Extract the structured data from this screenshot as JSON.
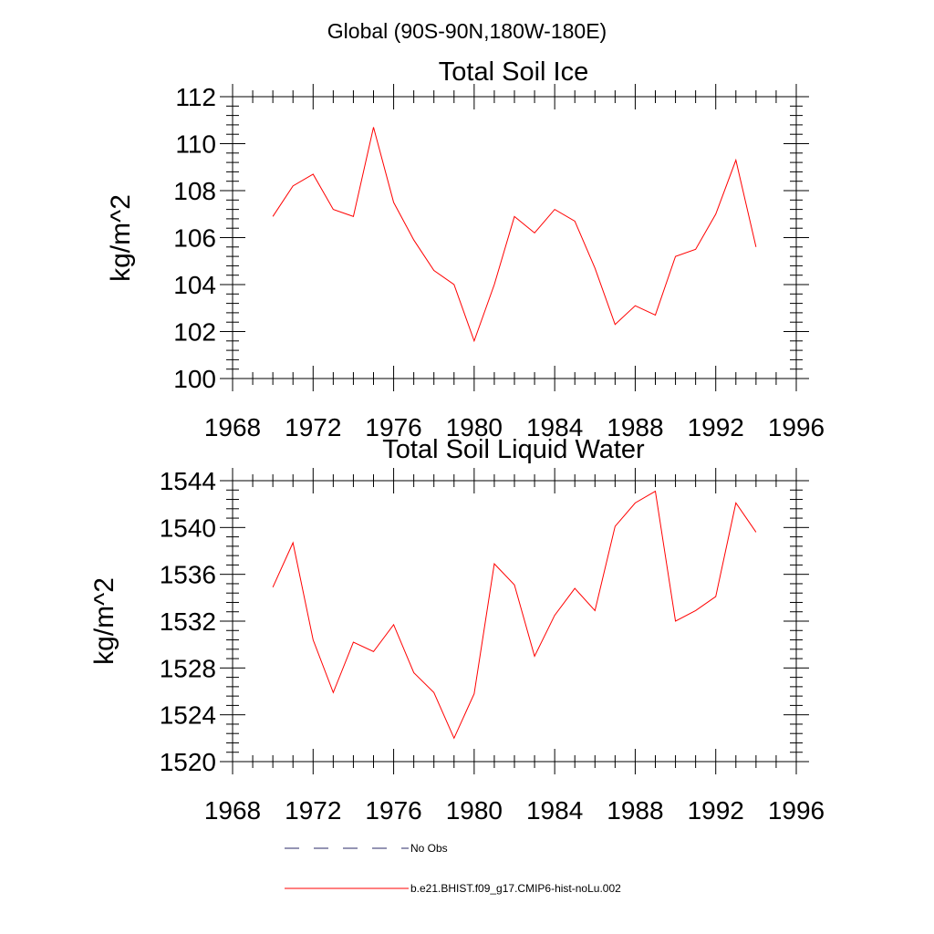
{
  "supertitle": "Global (90S-90N,180W-180E)",
  "legend": {
    "items": [
      {
        "label": "No Obs",
        "style": "dashed",
        "color": "#2a2a6a"
      },
      {
        "label": "b.e21.BHIST.f09_g17.CMIP6-hist-noLu.002",
        "style": "solid",
        "color": "#ff0000"
      }
    ]
  },
  "chart_data": [
    {
      "type": "line",
      "title": "Total Soil Ice",
      "ylabel": "kg/m^2",
      "xlabel": "",
      "xlim": [
        1968,
        1996
      ],
      "ylim": [
        100,
        112
      ],
      "xticks": [
        1968,
        1972,
        1976,
        1980,
        1984,
        1988,
        1992,
        1996
      ],
      "yticks": [
        100,
        102,
        104,
        106,
        108,
        110,
        112
      ],
      "x": [
        1970,
        1971,
        1972,
        1973,
        1974,
        1975,
        1976,
        1977,
        1978,
        1979,
        1980,
        1981,
        1982,
        1983,
        1984,
        1985,
        1986,
        1987,
        1988,
        1989,
        1990,
        1991,
        1992,
        1993,
        1994
      ],
      "series": [
        {
          "name": "b.e21.BHIST.f09_g17.CMIP6-hist-noLu.002",
          "color": "#ff0000",
          "values": [
            106.9,
            108.2,
            108.7,
            107.2,
            106.9,
            110.7,
            107.5,
            105.9,
            104.6,
            104.0,
            101.6,
            104.0,
            106.9,
            106.2,
            107.2,
            106.7,
            104.7,
            102.3,
            103.1,
            102.7,
            105.2,
            105.5,
            107.0,
            109.3,
            105.6
          ]
        }
      ]
    },
    {
      "type": "line",
      "title": "Total Soil Liquid Water",
      "ylabel": "kg/m^2",
      "xlabel": "",
      "xlim": [
        1968,
        1996
      ],
      "ylim": [
        1520,
        1544
      ],
      "xticks": [
        1968,
        1972,
        1976,
        1980,
        1984,
        1988,
        1992,
        1996
      ],
      "yticks": [
        1520,
        1524,
        1528,
        1532,
        1536,
        1540,
        1544
      ],
      "x": [
        1970,
        1971,
        1972,
        1973,
        1974,
        1975,
        1976,
        1977,
        1978,
        1979,
        1980,
        1981,
        1982,
        1983,
        1984,
        1985,
        1986,
        1987,
        1988,
        1989,
        1990,
        1991,
        1992,
        1993,
        1994
      ],
      "series": [
        {
          "name": "b.e21.BHIST.f09_g17.CMIP6-hist-noLu.002",
          "color": "#ff0000",
          "values": [
            1534.9,
            1538.7,
            1530.4,
            1525.9,
            1530.2,
            1529.4,
            1531.7,
            1527.6,
            1525.9,
            1522.0,
            1525.8,
            1536.9,
            1535.1,
            1529.0,
            1532.5,
            1534.8,
            1532.9,
            1540.1,
            1542.1,
            1543.1,
            1532.0,
            1532.9,
            1534.1,
            1542.1,
            1539.6
          ]
        }
      ]
    }
  ]
}
